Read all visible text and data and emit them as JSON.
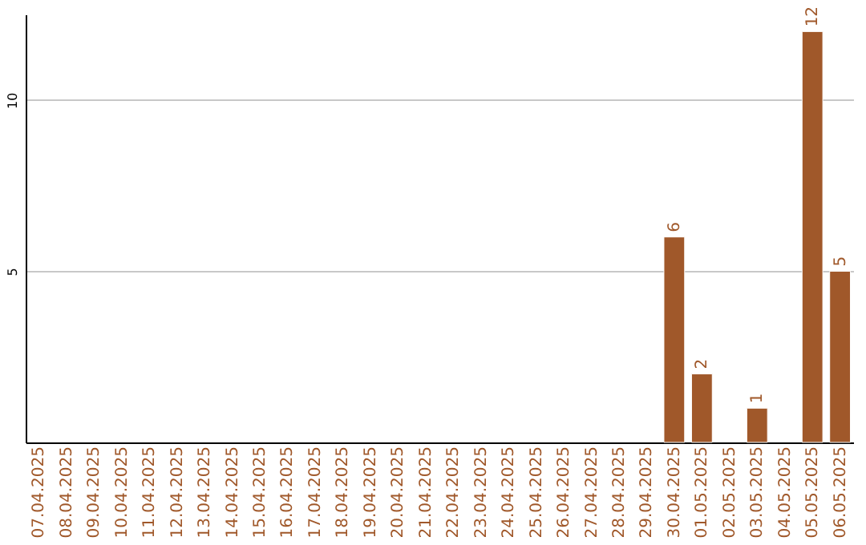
{
  "chart_data": {
    "type": "bar",
    "categories": [
      "07.04.2025",
      "08.04.2025",
      "09.04.2025",
      "10.04.2025",
      "11.04.2025",
      "12.04.2025",
      "13.04.2025",
      "14.04.2025",
      "15.04.2025",
      "16.04.2025",
      "17.04.2025",
      "18.04.2025",
      "19.04.2025",
      "20.04.2025",
      "21.04.2025",
      "22.04.2025",
      "23.04.2025",
      "24.04.2025",
      "25.04.2025",
      "26.04.2025",
      "27.04.2025",
      "28.04.2025",
      "29.04.2025",
      "30.04.2025",
      "01.05.2025",
      "02.05.2025",
      "03.05.2025",
      "04.05.2025",
      "05.05.2025",
      "06.05.2025"
    ],
    "values": [
      null,
      null,
      null,
      null,
      null,
      null,
      null,
      null,
      null,
      null,
      null,
      null,
      null,
      null,
      null,
      null,
      null,
      null,
      null,
      null,
      null,
      null,
      null,
      6,
      2,
      null,
      1,
      null,
      12,
      5
    ],
    "color": "#a0582a",
    "ylim": [
      0,
      12.5
    ],
    "yticks": [
      5,
      10
    ],
    "grid": "y",
    "data_labels": true
  }
}
